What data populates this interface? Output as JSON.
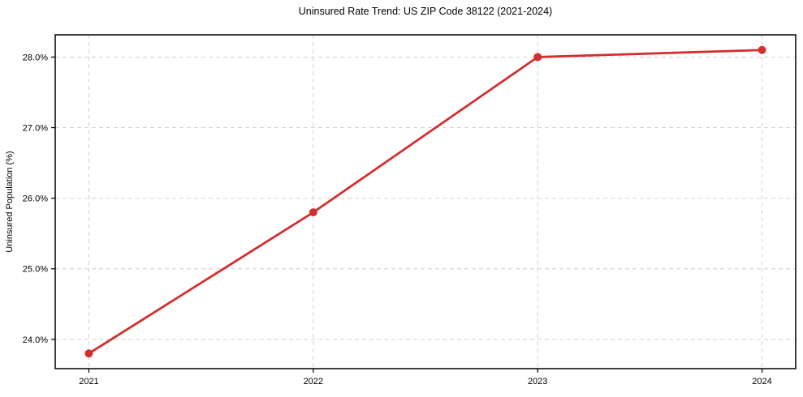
{
  "chart_data": {
    "type": "line",
    "title": "Uninsured Rate Trend: US ZIP Code 38122 (2021-2024)",
    "xlabel": "",
    "ylabel": "Uninsured Population (%)",
    "x": [
      2021,
      2022,
      2023,
      2024
    ],
    "x_tick_labels": [
      "2021",
      "2022",
      "2023",
      "2024"
    ],
    "series": [
      {
        "name": "uninsured-rate",
        "values": [
          23.8,
          25.8,
          28.0,
          28.1
        ],
        "color": "#d32f2f",
        "line_width": 2.8,
        "marker": "circle",
        "marker_radius": 5
      }
    ],
    "y_ticks": [
      24.0,
      25.0,
      26.0,
      27.0,
      28.0
    ],
    "y_tick_labels": [
      "24.0%",
      "25.0%",
      "26.0%",
      "27.0%",
      "28.0%"
    ],
    "xlim": [
      2020.85,
      2024.15
    ],
    "ylim": [
      23.585,
      28.315
    ],
    "grid": true,
    "grid_color": "#cccccc",
    "grid_dash": "5,4",
    "legend_position": "none",
    "frame_color": "#000000",
    "tick_color": "#000000",
    "text_color": "#000000",
    "background_color": "#ffffff"
  }
}
